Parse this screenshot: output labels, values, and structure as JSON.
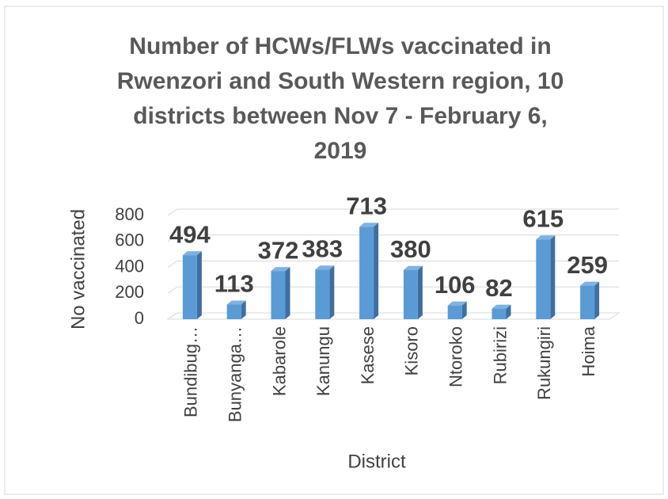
{
  "chart_data": {
    "type": "bar",
    "title_lines": [
      "Number of HCWs/FLWs vaccinated in",
      "Rwenzori and South Western region,  10",
      "districts between Nov 7 - February 6,",
      "2019"
    ],
    "categories": [
      "Bundibug…",
      "Bunyanga…",
      "Kabarole",
      "Kanungu",
      "Kasese",
      "Kisoro",
      "Ntoroko",
      "Rubirizi",
      "Rukungiri",
      "Hoima"
    ],
    "values": [
      494,
      113,
      372,
      383,
      713,
      380,
      106,
      82,
      615,
      259
    ],
    "color": "#5b9bd5",
    "ylim": [
      0,
      800
    ],
    "yticks": [
      0,
      200,
      400,
      600,
      800
    ],
    "grid": true,
    "y_label": "No vaccinated",
    "x_label": "District"
  }
}
